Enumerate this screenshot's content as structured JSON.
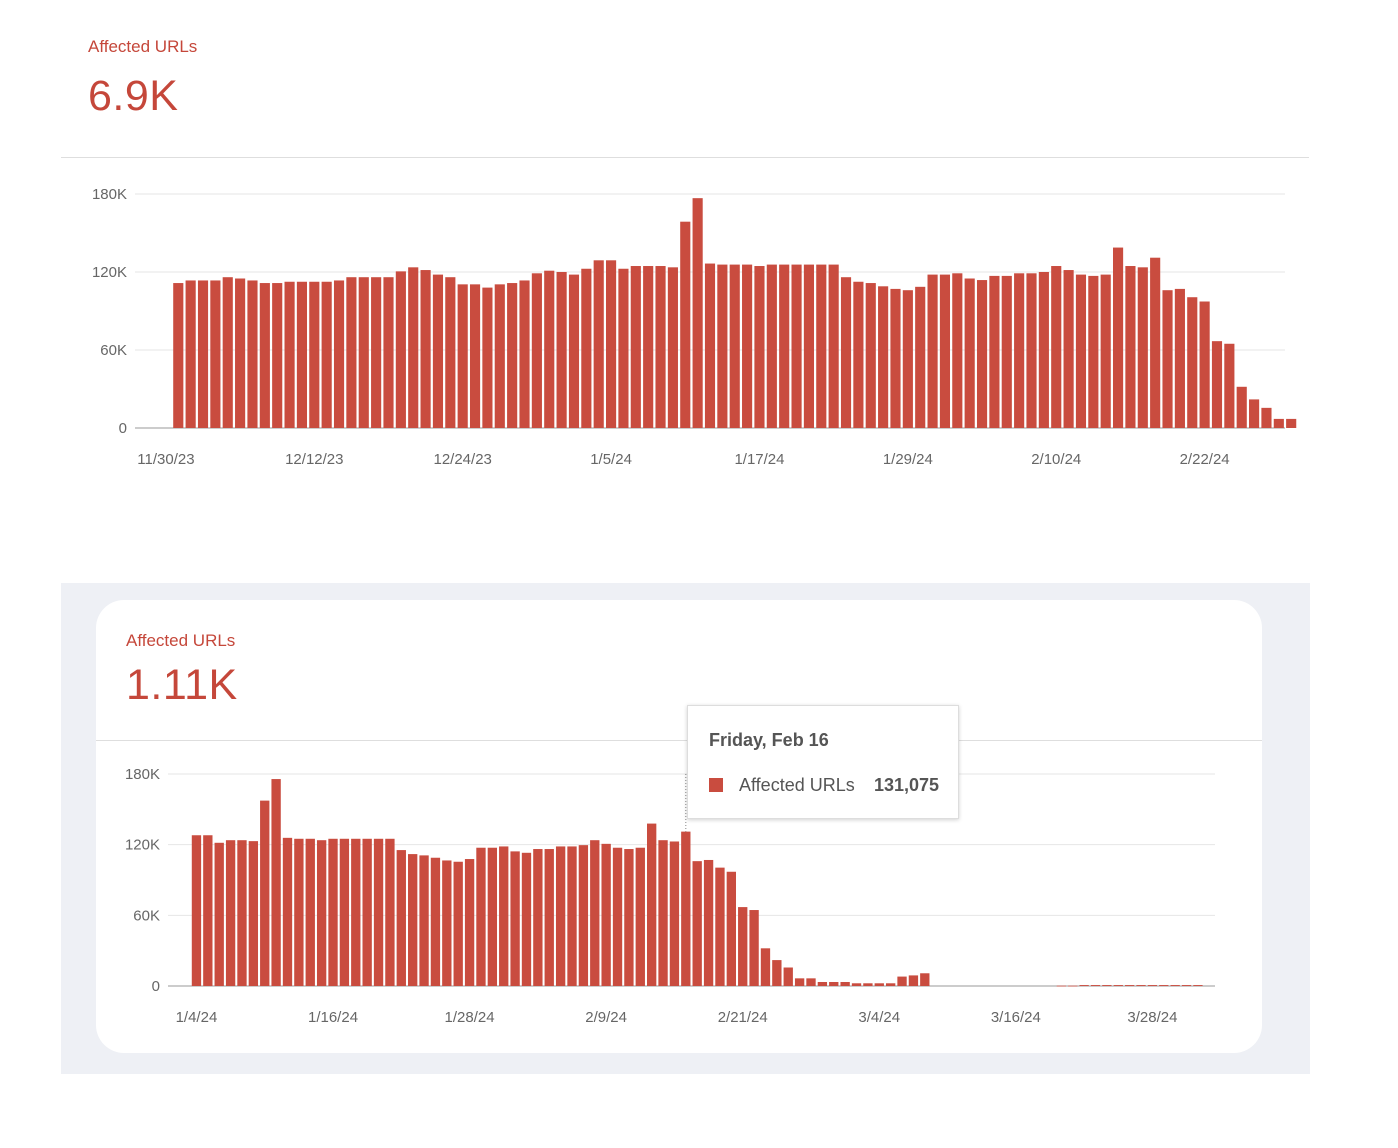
{
  "colors": {
    "bar": "#c94c3f",
    "accent": "#c5473a",
    "tooltip_line": "#888888"
  },
  "top_panel": {
    "title": "Affected URLs",
    "value": "6.9K"
  },
  "bottom_panel": {
    "title": "Affected URLs",
    "value": "1.11K"
  },
  "tooltip": {
    "date": "Friday, Feb 16",
    "series": "Affected URLs",
    "value": "131,075"
  },
  "chart_data": [
    {
      "type": "bar",
      "title": "",
      "xlabel": "",
      "ylabel": "",
      "series_name": "Affected URLs",
      "start_date": "12/1/23",
      "xlim": [
        "11/28/23",
        "2/29/24"
      ],
      "ylim": [
        0,
        180000
      ],
      "yticks": [
        {
          "value": 0,
          "label": "0"
        },
        {
          "value": 60000,
          "label": "60K"
        },
        {
          "value": 120000,
          "label": "120K"
        },
        {
          "value": 180000,
          "label": "180K"
        }
      ],
      "xticks": [
        "11/30/23",
        "12/12/23",
        "12/24/23",
        "1/5/24",
        "1/17/24",
        "1/29/24",
        "2/10/24",
        "2/22/24"
      ],
      "grid": true,
      "values": [
        111500,
        113500,
        113500,
        113500,
        116000,
        115000,
        113500,
        111500,
        111500,
        112500,
        112500,
        112500,
        112500,
        113500,
        116000,
        116000,
        116000,
        116000,
        120500,
        123600,
        121500,
        118000,
        116000,
        110500,
        110500,
        108000,
        110500,
        111500,
        113500,
        119000,
        121000,
        120000,
        118000,
        122500,
        129000,
        129000,
        122500,
        124600,
        124600,
        124600,
        123600,
        158700,
        176800,
        126500,
        125700,
        125700,
        125700,
        124600,
        125700,
        125700,
        125700,
        125700,
        125700,
        125700,
        116000,
        112500,
        111500,
        109000,
        107000,
        106000,
        108600,
        118000,
        118000,
        119000,
        115000,
        113800,
        117000,
        117000,
        119000,
        119000,
        120000,
        124600,
        121500,
        118000,
        117000,
        118000,
        138800,
        124600,
        123600,
        131000,
        106000,
        107000,
        100600,
        97300,
        66800,
        64800,
        31700,
        22000,
        15500,
        7000,
        7000
      ]
    },
    {
      "type": "bar",
      "title": "",
      "xlabel": "",
      "ylabel": "",
      "series_name": "Affected URLs",
      "start_date": "1/4/24",
      "xlim": [
        "1/2/24",
        "4/3/24"
      ],
      "ylim": [
        0,
        180000
      ],
      "yticks": [
        {
          "value": 0,
          "label": "0"
        },
        {
          "value": 60000,
          "label": "60K"
        },
        {
          "value": 120000,
          "label": "120K"
        },
        {
          "value": 180000,
          "label": "180K"
        }
      ],
      "xticks": [
        "1/4/24",
        "1/16/24",
        "1/28/24",
        "2/9/24",
        "2/21/24",
        "3/4/24",
        "3/16/24",
        "3/28/24"
      ],
      "grid": true,
      "highlight_date": "2/16/24",
      "values": [
        128000,
        128000,
        121600,
        123800,
        123800,
        123000,
        157400,
        175700,
        125800,
        125000,
        125000,
        123800,
        125000,
        125000,
        125000,
        125000,
        125000,
        125000,
        115400,
        112000,
        110900,
        108900,
        106600,
        105500,
        107800,
        117400,
        117400,
        118500,
        114300,
        113100,
        116300,
        116300,
        118500,
        118500,
        119600,
        123800,
        120700,
        117400,
        116300,
        117400,
        137900,
        123800,
        122700,
        131075,
        106000,
        107000,
        100500,
        97000,
        67000,
        64500,
        32000,
        22000,
        15700,
        6500,
        6500,
        3400,
        3400,
        3400,
        2300,
        2300,
        2300,
        2300,
        8000,
        9000,
        10800,
        0,
        0,
        0,
        0,
        0,
        0,
        0,
        0,
        0,
        0,
        0,
        300,
        300,
        800,
        800,
        800,
        800,
        800,
        800,
        800,
        800,
        800,
        800,
        800
      ]
    }
  ]
}
